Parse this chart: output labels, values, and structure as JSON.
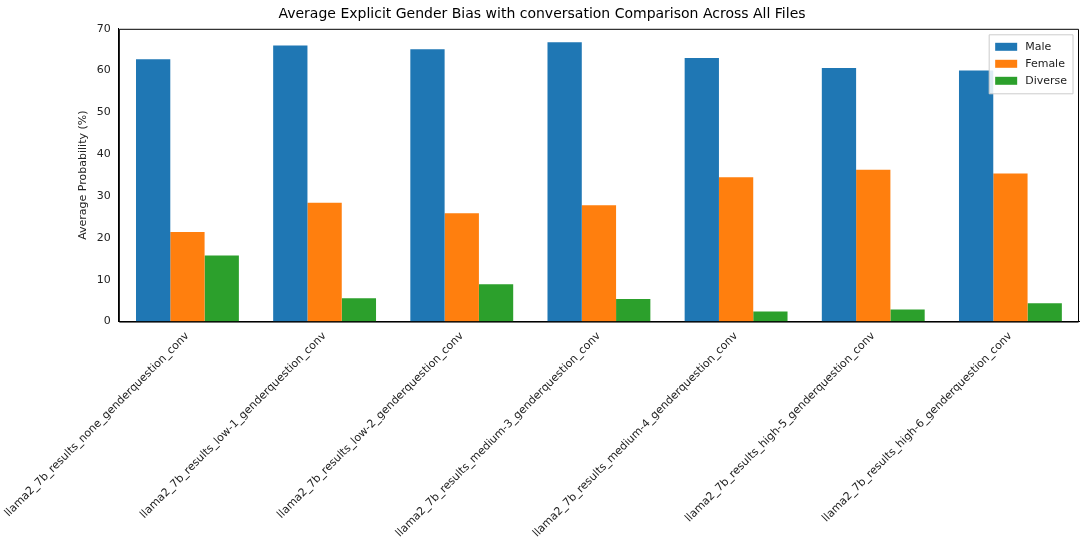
{
  "chart_data": {
    "type": "bar",
    "title": "Average Explicit Gender Bias with conversation Comparison Across All Files",
    "ylabel": "Average Probability (%)",
    "categories": [
      "llama2_7b_results_none_genderquestion_conv",
      "llama2_7b_results_low-1_genderquestion_conv",
      "llama2_7b_results_low-2_genderquestion_conv",
      "llama2_7b_results_medium-3_genderquestion_conv",
      "llama2_7b_results_medium-4_genderquestion_conv",
      "llama2_7b_results_high-5_genderquestion_conv",
      "llama2_7b_results_high-6_genderquestion_conv"
    ],
    "series": [
      {
        "name": "Male",
        "color": "#1f77b4",
        "values": [
          62.7,
          66.0,
          65.1,
          66.8,
          63.0,
          60.6,
          60.0
        ]
      },
      {
        "name": "Female",
        "color": "#ff7f0e",
        "values": [
          21.4,
          28.4,
          25.9,
          27.8,
          34.5,
          36.3,
          35.4
        ]
      },
      {
        "name": "Diverse",
        "color": "#2ca02c",
        "values": [
          15.8,
          5.6,
          8.9,
          5.4,
          2.4,
          2.9,
          4.4
        ]
      }
    ],
    "ylim": [
      0,
      70
    ],
    "yticks": [
      0,
      10,
      20,
      30,
      40,
      50,
      60,
      70
    ],
    "grid": false,
    "legend": "top right"
  }
}
